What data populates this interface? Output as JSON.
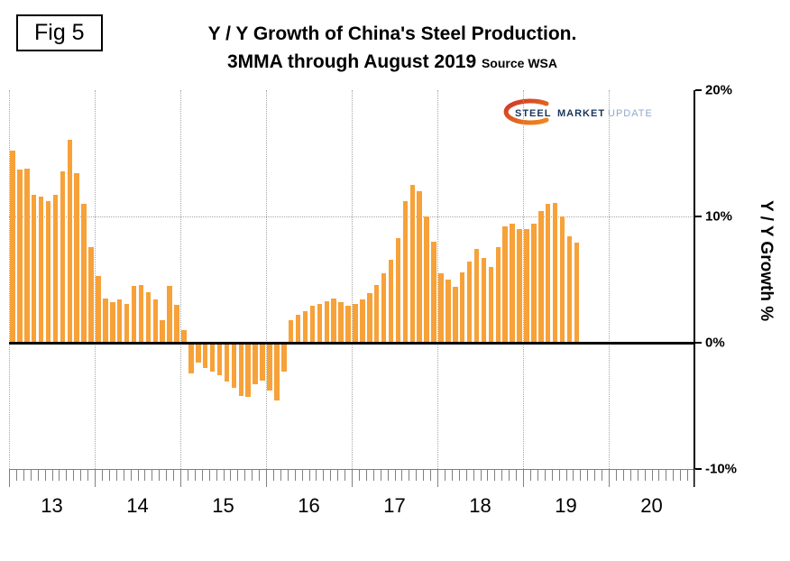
{
  "figure": {
    "label": "Fig 5"
  },
  "title": {
    "line1": "Y / Y Growth of China's Steel Production.",
    "line2": "3MMA through August 2019",
    "source": "Source WSA"
  },
  "logo": {
    "steel": "STEEL",
    "market": "MARKET",
    "update": "UPDATE",
    "navy": "#17365D",
    "light_blue": "#8EA9C8",
    "swoosh_red": "#CE3327",
    "swoosh_orange": "#F08A1D"
  },
  "axis": {
    "y_ticks": [
      "20%",
      "10%",
      "0%",
      "-10%"
    ],
    "y_label": "Y / Y Growth %",
    "x_years": [
      "13",
      "14",
      "15",
      "16",
      "17",
      "18",
      "19",
      "20"
    ]
  },
  "chart_data": {
    "type": "bar",
    "title": "Y / Y Growth of China's Steel Production. 3MMA through August 2019",
    "source": "WSA",
    "unit": "percent",
    "frequency": "monthly",
    "x_start": "2013-01",
    "x_end": "2019-08",
    "x_axis_span": [
      "2013",
      "2020"
    ],
    "ylim": [
      -10,
      20
    ],
    "y_tick_values": [
      20,
      10,
      0,
      -10
    ],
    "bar_color": "#F7A139",
    "zero_line": true,
    "grid": true,
    "values": [
      15.2,
      13.7,
      13.8,
      11.7,
      11.6,
      11.2,
      11.7,
      13.6,
      16.1,
      13.4,
      11.0,
      7.6,
      5.3,
      3.5,
      3.2,
      3.4,
      3.1,
      4.5,
      4.6,
      4.0,
      3.4,
      1.8,
      4.5,
      3.0,
      1.0,
      -2.4,
      -1.6,
      -2.0,
      -2.3,
      -2.6,
      -3.1,
      -3.6,
      -4.2,
      -4.3,
      -3.3,
      -3.0,
      -3.8,
      -4.6,
      -2.3,
      1.8,
      2.2,
      2.5,
      2.9,
      3.1,
      3.3,
      3.5,
      3.2,
      2.9,
      3.1,
      3.4,
      3.9,
      4.6,
      5.5,
      6.6,
      8.3,
      11.2,
      12.5,
      12.0,
      10.0,
      8.0,
      5.5,
      5.0,
      4.4,
      5.6,
      6.4,
      7.4,
      6.7,
      6.0,
      7.6,
      9.2,
      9.4,
      9.0,
      9.0,
      9.4,
      10.4,
      11.0,
      11.1,
      10.0,
      8.4,
      7.9
    ]
  }
}
